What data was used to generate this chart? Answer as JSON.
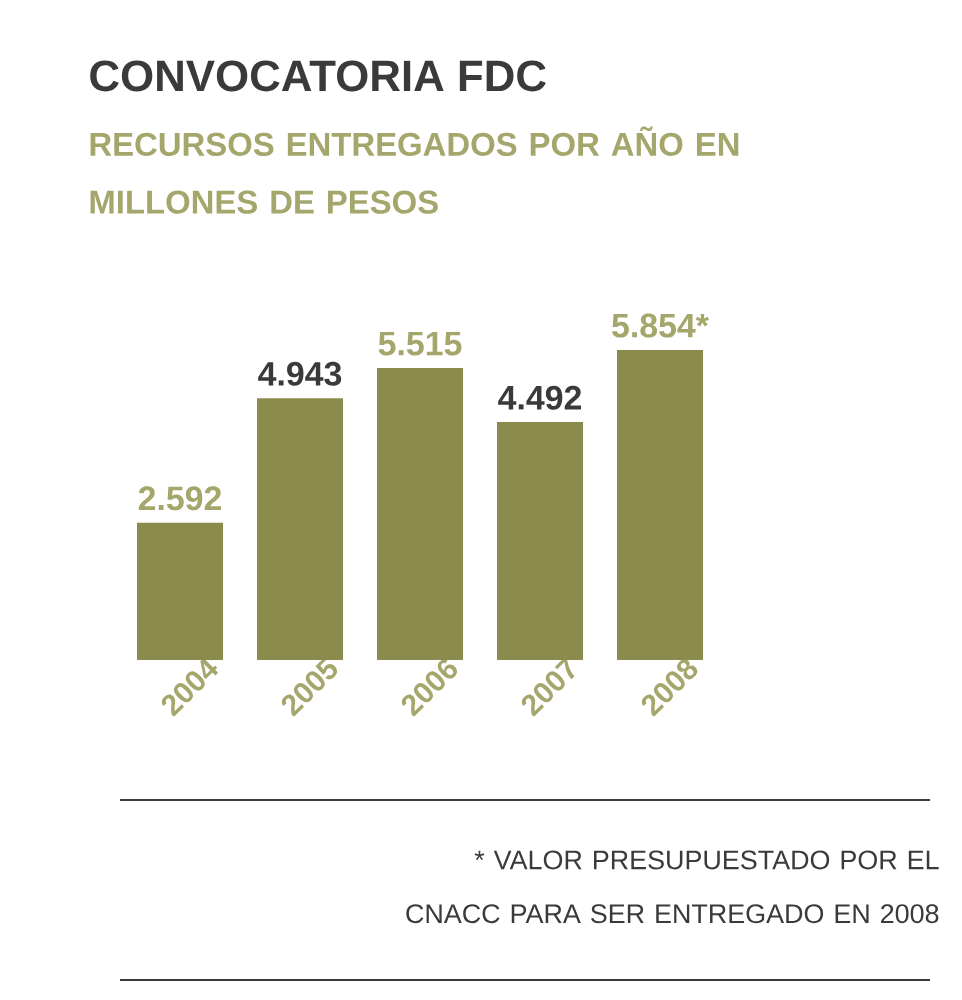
{
  "chart_data": {
    "type": "bar",
    "title": "CONVOCATORIA FDC",
    "subtitle": "RECURSOS ENTREGADOS POR AÑO EN MILLONES DE PESOS",
    "categories": [
      "2004",
      "2005",
      "2006",
      "2007",
      "2008"
    ],
    "values": [
      2592,
      4943,
      5515,
      4492,
      5854
    ],
    "value_labels": [
      "2.592",
      "4.943",
      "5.515",
      "4.492",
      "5.854*"
    ],
    "color": "#8c8b4e",
    "annotations": [
      "* VALOR PRESUPUESTADO POR EL CNACC PARA SER ENTREGADO EN 2008"
    ]
  }
}
